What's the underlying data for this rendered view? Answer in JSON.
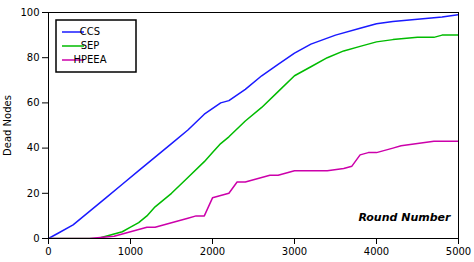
{
  "chart_data": {
    "type": "line",
    "xlabel": "Round Number",
    "ylabel": "Dead Nodes",
    "xlim": [
      0,
      5000
    ],
    "ylim": [
      0,
      100
    ],
    "xticks": [
      0,
      1000,
      2000,
      3000,
      4000,
      5000
    ],
    "yticks": [
      0,
      20,
      40,
      60,
      80,
      100
    ],
    "legend": "upper left",
    "grid": false,
    "series": [
      {
        "name": "CCS",
        "color": "#1a1aff",
        "x": [
          0,
          100,
          300,
          500,
          700,
          900,
          1100,
          1300,
          1500,
          1700,
          1900,
          2100,
          2200,
          2400,
          2600,
          2800,
          3000,
          3200,
          3500,
          3800,
          4000,
          4200,
          4500,
          4800,
          5000
        ],
        "values": [
          0,
          2,
          6,
          12,
          18,
          24,
          30,
          36,
          42,
          48,
          55,
          60,
          61,
          66,
          72,
          77,
          82,
          86,
          90,
          93,
          95,
          96,
          97,
          98,
          99
        ]
      },
      {
        "name": "SEP",
        "color": "#00bb00",
        "x": [
          0,
          200,
          400,
          600,
          700,
          800,
          900,
          1000,
          1100,
          1200,
          1300,
          1500,
          1700,
          1900,
          2000,
          2100,
          2200,
          2400,
          2600,
          2800,
          3000,
          3200,
          3400,
          3600,
          3800,
          4000,
          4200,
          4500,
          4700,
          4800,
          5000
        ],
        "values": [
          0,
          0,
          0,
          0,
          1,
          2,
          3,
          5,
          7,
          10,
          14,
          20,
          27,
          34,
          38,
          42,
          45,
          52,
          58,
          65,
          72,
          76,
          80,
          83,
          85,
          87,
          88,
          89,
          89,
          90,
          90
        ]
      },
      {
        "name": "HPEEA",
        "color": "#cc00aa",
        "x": [
          0,
          500,
          800,
          900,
          1000,
          1100,
          1200,
          1300,
          1400,
          1500,
          1600,
          1700,
          1800,
          1900,
          2000,
          2100,
          2200,
          2300,
          2400,
          2500,
          2600,
          2700,
          2800,
          2900,
          3000,
          3200,
          3400,
          3600,
          3700,
          3800,
          3900,
          4000,
          4100,
          4200,
          4300,
          4500,
          4700,
          4800,
          4900,
          5000
        ],
        "values": [
          0,
          0,
          1,
          2,
          3,
          4,
          5,
          5,
          6,
          7,
          8,
          9,
          10,
          10,
          18,
          19,
          20,
          25,
          25,
          26,
          27,
          28,
          28,
          29,
          30,
          30,
          30,
          31,
          32,
          37,
          38,
          38,
          39,
          40,
          41,
          42,
          43,
          43,
          43,
          43
        ]
      }
    ]
  }
}
